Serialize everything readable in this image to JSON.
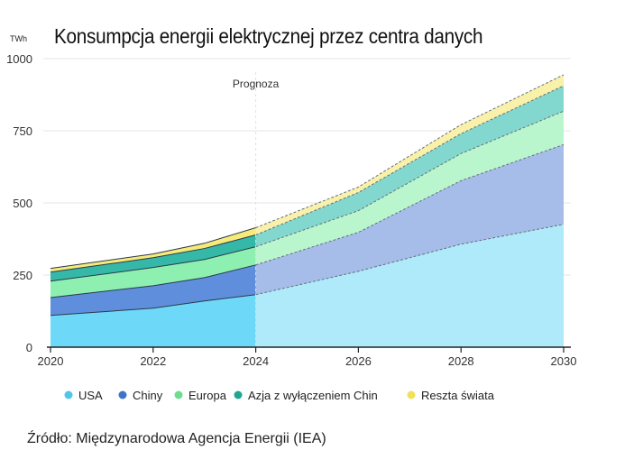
{
  "chart_data": {
    "type": "area",
    "stacked": true,
    "title": "Konsumpcja energii elektrycznej przez centra danych",
    "ylabel": "TWh",
    "xlabel": "",
    "ylim": [
      0,
      1000
    ],
    "yticks": [
      0,
      250,
      500,
      750,
      1000
    ],
    "xticks": [
      2020,
      2022,
      2024,
      2026,
      2028,
      2030
    ],
    "grid": true,
    "legend": "bottom",
    "x": [
      2020,
      2022,
      2023,
      2024,
      2026,
      2028,
      2030
    ],
    "forecast_from": 2024,
    "annotation": "Prognoza",
    "series": [
      {
        "name": "USA",
        "values": [
          110,
          135,
          160,
          182,
          263,
          357,
          426
        ],
        "color": "#6dd8f7",
        "forecast_color": "#aeeaf9",
        "legend_color": "#4fc6ea"
      },
      {
        "name": "Chiny",
        "values": [
          62,
          78,
          81,
          103,
          135,
          220,
          276
        ],
        "color": "#5f8fdc",
        "forecast_color": "#a6bce9",
        "legend_color": "#3f74cc"
      },
      {
        "name": "Europa",
        "values": [
          57,
          63,
          63,
          63,
          75,
          94,
          116
        ],
        "color": "#8ef0b0",
        "forecast_color": "#b9f6cd",
        "legend_color": "#6fdc90"
      },
      {
        "name": "Azja z wyłączeniem Chin",
        "values": [
          31,
          34,
          38,
          41,
          63,
          69,
          88
        ],
        "color": "#35b8a8",
        "forecast_color": "#82d8ce",
        "legend_color": "#1fa594"
      },
      {
        "name": "Reszta świata",
        "values": [
          13,
          13,
          18,
          25,
          19,
          31,
          38
        ],
        "color": "#f6ea7a",
        "forecast_color": "#f9f1aa",
        "legend_color": "#f0e05a"
      }
    ]
  },
  "source": "Źródło: Międzynarodowa Agencja Energii (IEA)"
}
